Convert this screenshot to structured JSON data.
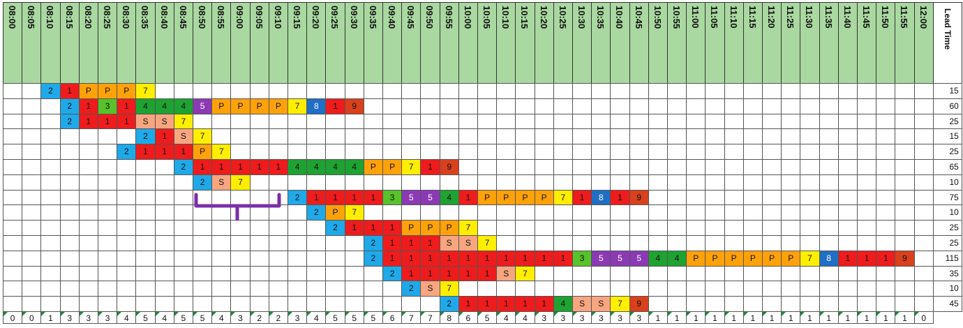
{
  "times": [
    "08:00",
    "08:05",
    "08:10",
    "08:15",
    "08:20",
    "08:25",
    "08:30",
    "08:35",
    "08:40",
    "08:45",
    "08:50",
    "08:55",
    "09:00",
    "09:05",
    "09:10",
    "09:15",
    "09:20",
    "09:25",
    "09:30",
    "09:35",
    "09:40",
    "09:45",
    "09:50",
    "09:55",
    "10:00",
    "10:05",
    "10:10",
    "10:15",
    "10:20",
    "10:25",
    "10:30",
    "10:35",
    "10:40",
    "10:45",
    "10:50",
    "10:55",
    "11:00",
    "11:05",
    "11:10",
    "11:15",
    "11:20",
    "11:25",
    "11:30",
    "11:35",
    "11:40",
    "11:45",
    "11:50",
    "11:55",
    "12:00"
  ],
  "lead_time_label": "Lead Time",
  "colors": {
    "1": "#ee1c1c",
    "2": "#1fa9e8",
    "3": "#57c229",
    "4": "#1ea232",
    "5": "#8b3ab4",
    "7": "#ffee00",
    "8": "#1f6fc4",
    "9": "#d9401c",
    "P": "#ffa20a",
    "S": "#f7a680"
  },
  "rows": [
    {
      "start": 2,
      "cells": [
        "2",
        "1",
        "P",
        "P",
        "P",
        "7"
      ],
      "lead_time": "15"
    },
    {
      "start": 3,
      "cells": [
        "2",
        "1",
        "3",
        "1",
        "4",
        "4",
        "4",
        "5",
        "P",
        "P",
        "P",
        "P",
        "7",
        "8",
        "1",
        "9"
      ],
      "lead_time": "60"
    },
    {
      "start": 3,
      "cells": [
        "2",
        "1",
        "1",
        "1",
        "S",
        "S",
        "7"
      ],
      "lead_time": "25"
    },
    {
      "start": 7,
      "cells": [
        "2",
        "1",
        "S",
        "7"
      ],
      "lead_time": "15"
    },
    {
      "start": 6,
      "cells": [
        "2",
        "1",
        "1",
        "1",
        "P",
        "7"
      ],
      "lead_time": "25"
    },
    {
      "start": 9,
      "cells": [
        "2",
        "1",
        "1",
        "1",
        "1",
        "1",
        "4",
        "4",
        "4",
        "4",
        "P",
        "P",
        "7",
        "1",
        "9"
      ],
      "lead_time": "65"
    },
    {
      "start": 10,
      "cells": [
        "2",
        "S",
        "7"
      ],
      "lead_time": "10"
    },
    {
      "start": 15,
      "cells": [
        "2",
        "1",
        "1",
        "1",
        "1",
        "3",
        "5",
        "5",
        "4",
        "1",
        "P",
        "P",
        "P",
        "P",
        "7",
        "1",
        "8",
        "1",
        "9"
      ],
      "lead_time": "75"
    },
    {
      "start": 16,
      "cells": [
        "2",
        "P",
        "7"
      ],
      "lead_time": "10"
    },
    {
      "start": 17,
      "cells": [
        "2",
        "1",
        "1",
        "1",
        "P",
        "P",
        "P",
        "7"
      ],
      "lead_time": "25"
    },
    {
      "start": 19,
      "cells": [
        "2",
        "1",
        "1",
        "1",
        "S",
        "S",
        "7"
      ],
      "lead_time": "25"
    },
    {
      "start": 19,
      "cells": [
        "2",
        "1",
        "1",
        "1",
        "1",
        "1",
        "1",
        "1",
        "1",
        "1",
        "1",
        "3",
        "5",
        "5",
        "5",
        "4",
        "4",
        "P",
        "P",
        "P",
        "P",
        "P",
        "P",
        "7",
        "8",
        "1",
        "1",
        "1",
        "9"
      ],
      "lead_time": "115"
    },
    {
      "start": 20,
      "cells": [
        "2",
        "1",
        "1",
        "1",
        "1",
        "1",
        "S",
        "7"
      ],
      "lead_time": "35"
    },
    {
      "start": 21,
      "cells": [
        "2",
        "S",
        "7"
      ],
      "lead_time": "10"
    },
    {
      "start": 23,
      "cells": [
        "2",
        "1",
        "1",
        "1",
        "1",
        "1",
        "4",
        "S",
        "S",
        "7",
        "9"
      ],
      "lead_time": "45"
    }
  ],
  "totals": [
    "0",
    "0",
    "1",
    "3",
    "3",
    "3",
    "4",
    "5",
    "4",
    "5",
    "5",
    "4",
    "3",
    "2",
    "2",
    "3",
    "4",
    "5",
    "5",
    "5",
    "6",
    "7",
    "7",
    "8",
    "6",
    "5",
    "4",
    "4",
    "3",
    "3",
    "3",
    "3",
    "3",
    "3",
    "1",
    "1",
    "1",
    "1",
    "1",
    "1",
    "1",
    "1",
    "1",
    "1",
    "1",
    "1",
    "1",
    "1",
    "0"
  ]
}
